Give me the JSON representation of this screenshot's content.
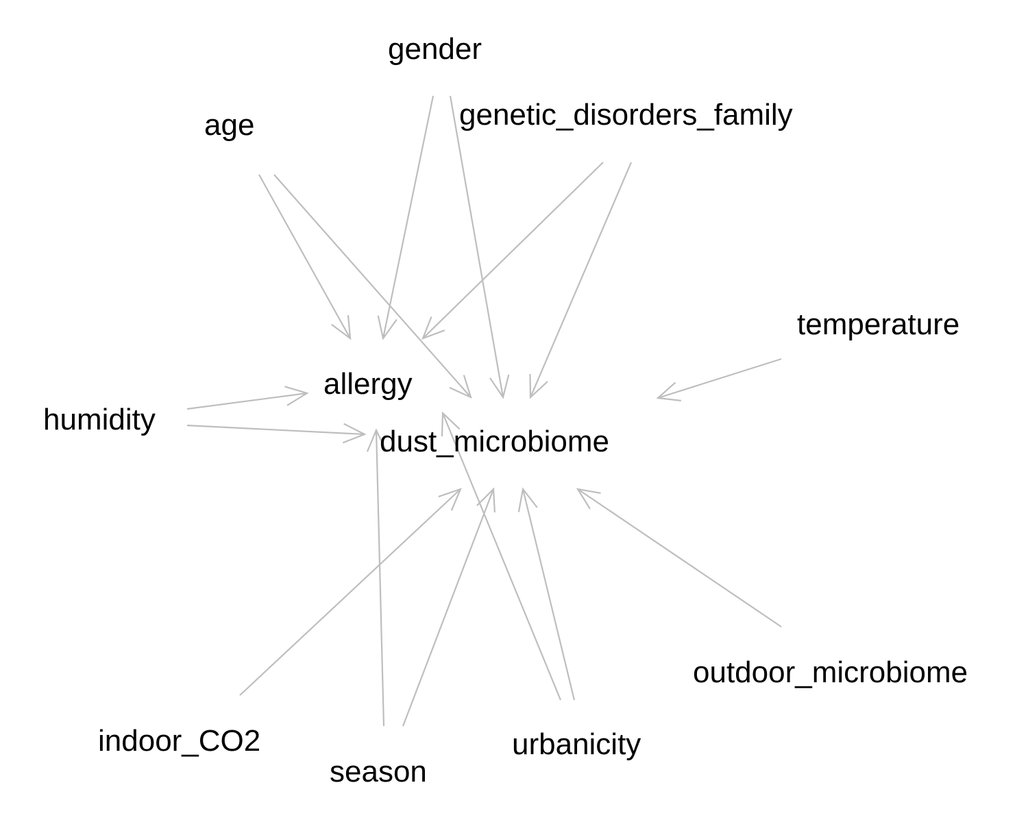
{
  "diagram": {
    "edge_color": "#bebebe",
    "label_color": "#000000",
    "nodes": [
      {
        "id": "gender",
        "label": "gender"
      },
      {
        "id": "age",
        "label": "age"
      },
      {
        "id": "genetic_disorders_family",
        "label": "genetic_disorders_family"
      },
      {
        "id": "temperature",
        "label": "temperature"
      },
      {
        "id": "allergy",
        "label": "allergy"
      },
      {
        "id": "humidity",
        "label": "humidity"
      },
      {
        "id": "dust_microbiome",
        "label": "dust_microbiome"
      },
      {
        "id": "outdoor_microbiome",
        "label": "outdoor_microbiome"
      },
      {
        "id": "indoor_CO2",
        "label": "indoor_CO2"
      },
      {
        "id": "urbanicity",
        "label": "urbanicity"
      },
      {
        "id": "season",
        "label": "season"
      }
    ],
    "edges": [
      {
        "from": "age",
        "to": "allergy"
      },
      {
        "from": "age",
        "to": "dust_microbiome"
      },
      {
        "from": "gender",
        "to": "allergy"
      },
      {
        "from": "gender",
        "to": "dust_microbiome"
      },
      {
        "from": "genetic_disorders_family",
        "to": "allergy"
      },
      {
        "from": "genetic_disorders_family",
        "to": "dust_microbiome"
      },
      {
        "from": "temperature",
        "to": "dust_microbiome"
      },
      {
        "from": "humidity",
        "to": "allergy"
      },
      {
        "from": "humidity",
        "to": "dust_microbiome"
      },
      {
        "from": "urbanicity",
        "to": "allergy"
      },
      {
        "from": "season",
        "to": "dust_microbiome"
      },
      {
        "from": "indoor_CO2",
        "to": "dust_microbiome"
      },
      {
        "from": "season",
        "to": "allergy"
      },
      {
        "from": "urbanicity",
        "to": "dust_microbiome"
      },
      {
        "from": "outdoor_microbiome",
        "to": "dust_microbiome"
      }
    ]
  }
}
